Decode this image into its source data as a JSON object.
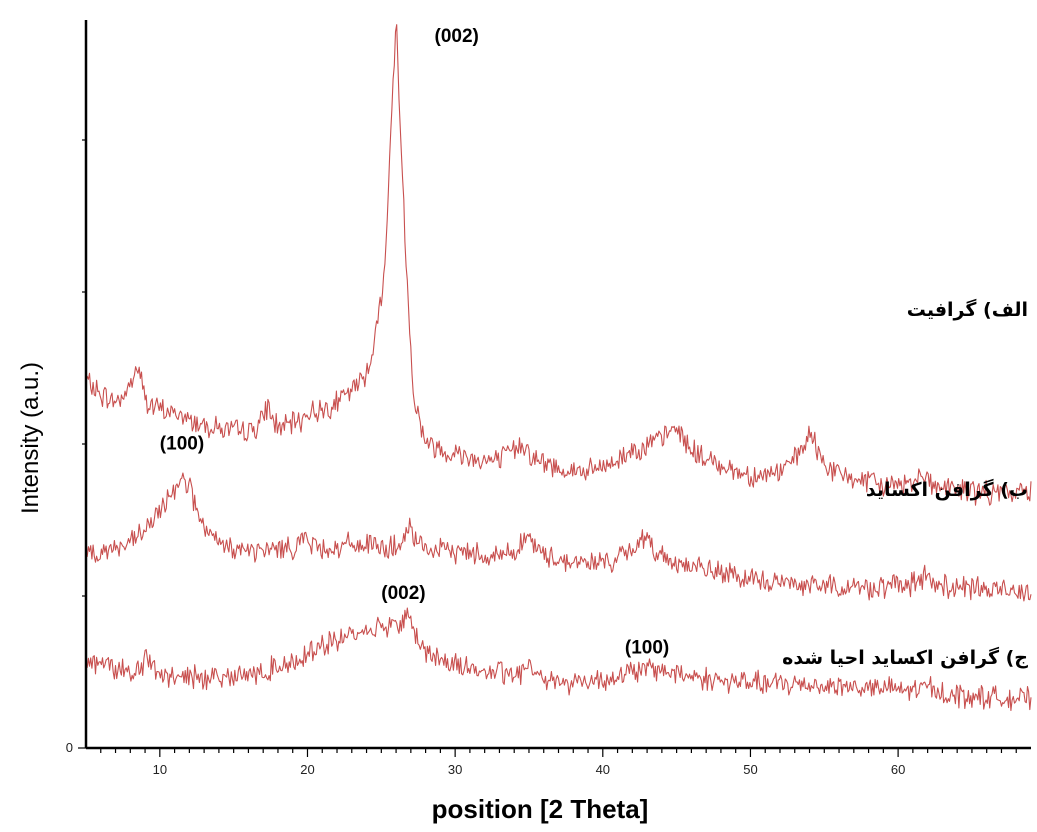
{
  "chart_data": {
    "type": "line",
    "title": "",
    "xlabel": "position [2 Theta]",
    "ylabel": "Intensity (a.u.)",
    "xlim": [
      5,
      69
    ],
    "x_ticks": [
      "10",
      "20",
      "30",
      "40",
      "50",
      "60"
    ],
    "y_tick_labels": [
      "0"
    ],
    "y_units": "a.u. (stacked, offset traces)",
    "series": [
      {
        "name": "الف) گرافیت",
        "color": "#c8504f",
        "x": [
          5,
          6,
          7,
          7.8,
          8.5,
          9.2,
          10,
          11,
          12,
          13,
          14,
          15,
          16,
          16.8,
          17.3,
          17.8,
          18.5,
          19.5,
          20,
          21,
          22,
          23,
          24,
          24.7,
          25.3,
          25.7,
          26.0,
          26.3,
          26.7,
          27.2,
          28,
          29,
          30,
          31,
          32,
          33,
          34,
          34.6,
          35.2,
          36,
          37,
          38,
          39,
          40,
          41,
          42,
          43,
          44,
          45,
          46,
          47,
          48,
          49,
          50,
          51,
          52,
          53,
          53.6,
          54.1,
          54.6,
          55.5,
          57,
          59,
          61,
          61.5,
          62.5,
          64,
          66,
          68,
          69
        ],
        "values": [
          10.1,
          9.7,
          9.5,
          9.8,
          10.5,
          9.4,
          9.3,
          9.2,
          9.0,
          8.9,
          8.8,
          8.7,
          8.7,
          8.9,
          9.4,
          8.9,
          8.8,
          9.0,
          9.2,
          9.3,
          9.5,
          9.8,
          10.3,
          11.5,
          13.5,
          17.5,
          20.0,
          17.0,
          13.2,
          9.6,
          8.4,
          8.2,
          8.1,
          8.0,
          7.9,
          7.9,
          8.2,
          8.4,
          8.0,
          7.8,
          7.7,
          7.6,
          7.6,
          7.7,
          7.9,
          8.2,
          8.3,
          8.5,
          8.8,
          8.2,
          7.9,
          7.8,
          7.6,
          7.5,
          7.5,
          7.6,
          7.9,
          8.3,
          8.6,
          8.1,
          7.6,
          7.4,
          7.2,
          7.3,
          7.6,
          7.2,
          7.1,
          7.0,
          7.0,
          7.1
        ]
      },
      {
        "name": "ب) گرافن اکساید",
        "color": "#c8504f",
        "x": [
          5,
          6,
          7,
          8,
          8.8,
          9.5,
          10.2,
          10.9,
          11.5,
          12.0,
          12.6,
          13.3,
          14,
          15,
          16,
          17,
          18,
          19,
          19.7,
          20.3,
          21,
          22,
          23,
          24,
          25,
          26,
          26.5,
          26.9,
          27.4,
          28,
          29,
          30,
          31,
          32,
          33,
          34,
          34.6,
          35,
          35.6,
          36,
          37,
          38,
          39,
          40,
          41,
          42,
          42.5,
          43,
          43.7,
          44.5,
          45,
          46,
          47,
          48,
          49,
          50,
          52,
          54,
          56,
          58,
          60,
          61.5,
          62,
          62.5,
          64,
          66,
          68,
          69
        ],
        "values": [
          5.4,
          5.4,
          5.5,
          5.6,
          5.9,
          6.2,
          6.6,
          7.1,
          7.5,
          7.2,
          6.4,
          5.8,
          5.6,
          5.5,
          5.4,
          5.4,
          5.5,
          5.5,
          5.8,
          5.6,
          5.5,
          5.5,
          5.6,
          5.6,
          5.5,
          5.5,
          5.7,
          6.0,
          5.6,
          5.5,
          5.4,
          5.4,
          5.4,
          5.3,
          5.3,
          5.4,
          5.7,
          5.8,
          5.4,
          5.3,
          5.2,
          5.1,
          5.1,
          5.1,
          5.2,
          5.4,
          5.8,
          5.6,
          5.4,
          5.2,
          5.1,
          5.0,
          4.9,
          4.8,
          4.7,
          4.6,
          4.55,
          4.5,
          4.45,
          4.4,
          4.45,
          4.55,
          4.8,
          4.5,
          4.4,
          4.35,
          4.35,
          4.35
        ]
      },
      {
        "name": "ج) گرافن اکساید احیا شده",
        "color": "#c8504f",
        "x": [
          5,
          6,
          7,
          8,
          8.7,
          9.1,
          9.6,
          10,
          11,
          12,
          13,
          14,
          15,
          16,
          17,
          17.6,
          18.2,
          19,
          19.7,
          20.1,
          20.5,
          21,
          22,
          23,
          24,
          25,
          25.8,
          26.3,
          26.8,
          27.3,
          27.8,
          28.5,
          29,
          30,
          31,
          32,
          33,
          34,
          34.6,
          35,
          35.5,
          36,
          37,
          38,
          39,
          40,
          41,
          42,
          43,
          44,
          45,
          46,
          47,
          48,
          49,
          50,
          52,
          54,
          56,
          58,
          60,
          61.5,
          62,
          62.5,
          64,
          66,
          68,
          69
        ],
        "values": [
          2.4,
          2.35,
          2.2,
          2.1,
          2.2,
          2.5,
          2.1,
          2.0,
          1.95,
          1.95,
          1.95,
          2.0,
          2.0,
          2.0,
          2.05,
          2.2,
          2.3,
          2.35,
          2.5,
          2.8,
          2.65,
          2.8,
          2.95,
          3.1,
          3.25,
          3.35,
          3.4,
          3.45,
          3.65,
          3.1,
          2.8,
          2.5,
          2.4,
          2.3,
          2.2,
          2.1,
          2.05,
          2.0,
          2.1,
          2.35,
          2.05,
          1.95,
          1.85,
          1.8,
          1.85,
          1.9,
          1.95,
          2.1,
          2.15,
          2.15,
          2.05,
          2.0,
          1.9,
          1.85,
          1.8,
          1.8,
          1.75,
          1.75,
          1.7,
          1.65,
          1.6,
          1.6,
          1.75,
          1.55,
          1.45,
          1.4,
          1.35,
          1.35
        ]
      }
    ],
    "annotations": [
      {
        "text": "(002)",
        "x": 26.3,
        "y": 19.4
      },
      {
        "text": "(100)",
        "x": 11.5,
        "y": 8.2
      },
      {
        "text": "(002)",
        "x": 26.5,
        "y": 4.1
      },
      {
        "text": "(100)",
        "x": 43,
        "y": 2.6
      }
    ],
    "grid": false,
    "legend": "none (series labeled inline at right)"
  }
}
